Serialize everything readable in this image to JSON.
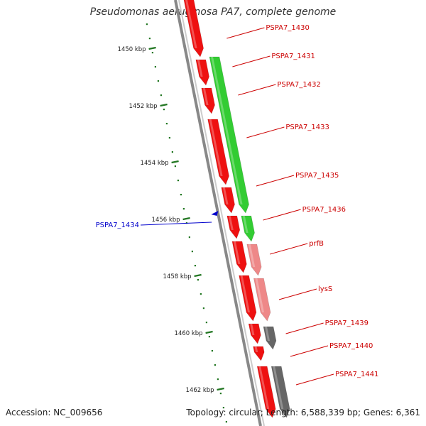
{
  "title": "Pseudomonas aeruginosa PA7, complete genome",
  "footer": {
    "accession": "Accession: NC_009656",
    "topology": "Topology: circular; Length: 6,588,339 bp; Genes: 6,361"
  },
  "colors": {
    "forward_gene": "#ee1111",
    "forward_gene_dark": "#aa0000",
    "reverse_gene": "#33cc33",
    "pink_gene": "#ee8888",
    "gray_gene": "#666666",
    "backbone": "#888888",
    "tick": "#227722",
    "label_red": "#cc0000",
    "label_blue": "#0000cc"
  },
  "scale": {
    "unit": "kbp",
    "ticks": [
      {
        "kbp": 1450,
        "label": "1450 kbp"
      },
      {
        "kbp": 1452,
        "label": "1452 kbp"
      },
      {
        "kbp": 1454,
        "label": "1454 kbp"
      },
      {
        "kbp": 1456,
        "label": "1456 kbp"
      },
      {
        "kbp": 1458,
        "label": "1458 kbp"
      },
      {
        "kbp": 1460,
        "label": "1460 kbp"
      },
      {
        "kbp": 1462,
        "label": "1462 kbp"
      }
    ]
  },
  "genes": [
    {
      "name": "PSPA7_1430",
      "lane": "forward",
      "color": "red",
      "start": 1447.9,
      "end": 1450.3
    },
    {
      "name": "PSPA7_1431",
      "lane": "forward",
      "color": "red",
      "start": 1450.4,
      "end": 1451.3
    },
    {
      "name": "PSPA7_1432",
      "lane": "forward",
      "color": "red",
      "start": 1451.4,
      "end": 1452.3
    },
    {
      "name": "PSPA7_1433",
      "lane": "forward",
      "color": "red",
      "start": 1452.5,
      "end": 1454.8
    },
    {
      "name": "PSPA7_1435",
      "lane": "forward",
      "color": "red",
      "start": 1454.9,
      "end": 1455.8
    },
    {
      "name": "PSPA7_1436",
      "lane": "forward",
      "color": "red",
      "start": 1455.9,
      "end": 1456.7
    },
    {
      "name": "prfB",
      "lane": "forward",
      "color": "red",
      "start": 1456.8,
      "end": 1457.9
    },
    {
      "name": "lysS",
      "lane": "forward",
      "color": "red",
      "start": 1458.0,
      "end": 1459.6
    },
    {
      "name": "PSPA7_1439",
      "lane": "forward",
      "color": "red",
      "start": 1459.7,
      "end": 1460.4
    },
    {
      "name": "PSPA7_1440",
      "lane": "forward",
      "color": "red",
      "start": 1460.5,
      "end": 1461.0
    },
    {
      "name": "PSPA7_1441",
      "lane": "forward",
      "color": "red",
      "start": 1461.2,
      "end": 1463.0
    },
    {
      "name": "",
      "lane": "reverse",
      "color": "green",
      "start": 1450.3,
      "end": 1455.8
    },
    {
      "name": "",
      "lane": "reverse",
      "color": "green",
      "start": 1455.9,
      "end": 1456.8
    },
    {
      "name": "",
      "lane": "reverse",
      "color": "pink",
      "start": 1456.9,
      "end": 1458.0
    },
    {
      "name": "",
      "lane": "reverse",
      "color": "pink",
      "start": 1458.1,
      "end": 1459.6
    },
    {
      "name": "",
      "lane": "reverse",
      "color": "gray",
      "start": 1459.8,
      "end": 1460.6
    },
    {
      "name": "",
      "lane": "reverse",
      "color": "gray",
      "start": 1461.2,
      "end": 1463.0
    }
  ],
  "gene_labels": [
    {
      "text": "PSPA7_1430",
      "kbp": 1449.6,
      "color": "red"
    },
    {
      "text": "PSPA7_1431",
      "kbp": 1450.6,
      "color": "red"
    },
    {
      "text": "PSPA7_1432",
      "kbp": 1451.6,
      "color": "red"
    },
    {
      "text": "PSPA7_1433",
      "kbp": 1453.1,
      "color": "red"
    },
    {
      "text": "PSPA7_1435",
      "kbp": 1454.8,
      "color": "red"
    },
    {
      "text": "PSPA7_1436",
      "kbp": 1456.0,
      "color": "red"
    },
    {
      "text": "prfB",
      "kbp": 1457.2,
      "color": "red"
    },
    {
      "text": "lysS",
      "kbp": 1458.8,
      "color": "red"
    },
    {
      "text": "PSPA7_1439",
      "kbp": 1460.0,
      "color": "red"
    },
    {
      "text": "PSPA7_1440",
      "kbp": 1460.8,
      "color": "red"
    },
    {
      "text": "PSPA7_1441",
      "kbp": 1461.8,
      "color": "red"
    }
  ],
  "left_labels": [
    {
      "text": "PSPA7_1434",
      "kbp": 1456.2,
      "color": "blue"
    }
  ],
  "marker": {
    "kbp": 1455.85
  }
}
